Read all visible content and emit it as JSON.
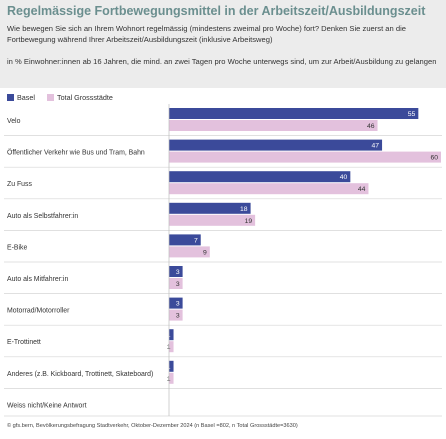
{
  "header": {
    "title": "Regelmässige Fortbewegungsmittel in der Arbeitszeit/Ausbildungszeit",
    "question": "Wie bewegen Sie sich an Ihrem Wohnort regelmässig (mindestens zweimal pro Woche) fort? Denken Sie zuerst an die Fortbewegung während Ihrer Arbeitszeit/Ausbildungszeit (inklusive Arbeitsweg)",
    "subtitle": "in % Einwohner:innen ab 16 Jahren, die mind. an zwei Tagen pro Woche unterwegs sind, um zur Arbeit/Ausbildung zu gelangen"
  },
  "colors": {
    "basel": "#3b4a9a",
    "total": "#e3c1dd",
    "title": "#6b8f8f"
  },
  "chart_data": {
    "type": "bar",
    "orientation": "horizontal",
    "categories": [
      "Velo",
      "Öffentlicher Verkehr wie Bus und Tram, Bahn",
      "Zu Fuss",
      "Auto als Selbstfahrer:in",
      "E-Bike",
      "Auto als Mitfahrer:in",
      "Motorrad/Motorroller",
      "E-Trottinett",
      "Anderes (z.B. Kickboard, Trottinett, Skateboard)",
      "Weiss nicht/Keine Antwort"
    ],
    "series": [
      {
        "name": "Basel",
        "values": [
          55,
          47,
          40,
          18,
          7,
          3,
          3,
          1,
          1,
          null
        ]
      },
      {
        "name": "Total Grossstädte",
        "values": [
          46,
          60,
          44,
          19,
          9,
          3,
          3,
          1,
          1,
          null
        ]
      }
    ],
    "xlim": [
      0,
      60
    ],
    "legend": "top-left",
    "grid": false
  },
  "source": "© gfs.bern, Bevölkerungsbefragung Stadtverkehr, Oktober-Dezember 2024 (n Basel =802, n Total Grossstädte=3630)"
}
